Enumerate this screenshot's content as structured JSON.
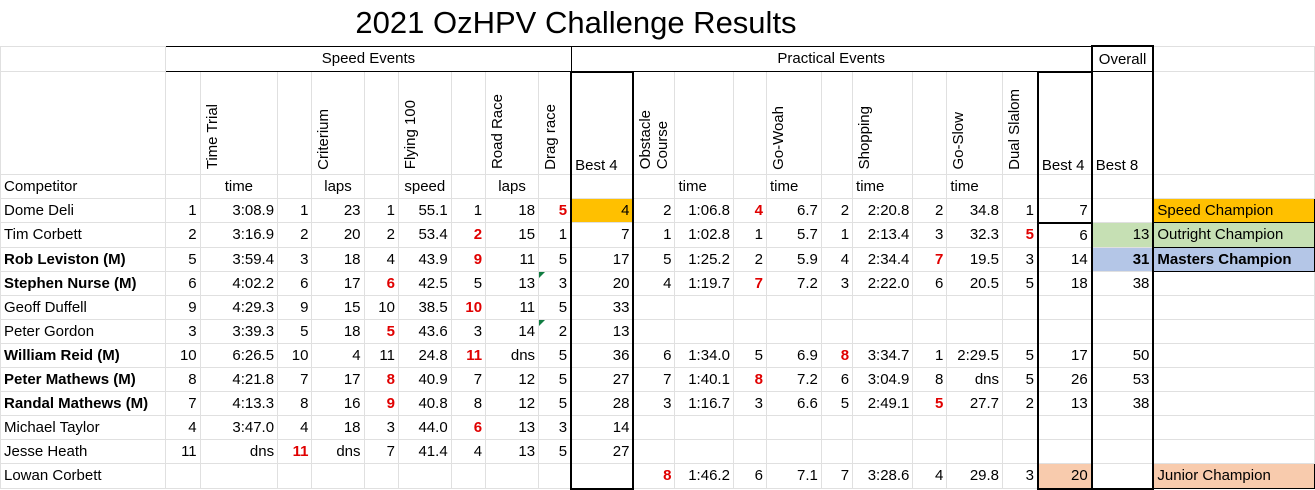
{
  "title": "2021 OzHPV Challenge Results",
  "groups": {
    "speed": "Speed Events",
    "practical": "Practical Events",
    "overall": "Overall"
  },
  "events": {
    "time_trial": "Time Trial",
    "criterium": "Criterium",
    "flying100": "Flying 100",
    "road_race": "Road Race",
    "drag_race": "Drag race",
    "best4": "Best 4",
    "obstacle_1": "Obstacle",
    "obstacle_2": "Course",
    "go_woah": "Go-Woah",
    "shopping": "Shopping",
    "go_slow": "Go-Slow",
    "dual_slalom": "Dual Slalom",
    "best4b": "Best 4",
    "best8": "Best 8"
  },
  "units": {
    "competitor": "Competitor",
    "time": "time",
    "laps": "laps",
    "speed": "speed",
    "laps2": "laps",
    "ob_time": "time",
    "gw_time": "time",
    "sh_time": "time",
    "gs_time": "time"
  },
  "rows": [
    {
      "name": "Dome Deli",
      "bold": false,
      "c": [
        "1",
        "3:08.9",
        "1",
        "23",
        "1",
        "55.1",
        "1",
        "18",
        "5",
        "4",
        "2",
        "1:06.8",
        "4",
        "6.7",
        "2",
        "2:20.8",
        "2",
        "34.8",
        "1",
        "7",
        ""
      ],
      "award": "Speed Champion"
    },
    {
      "name": "Tim Corbett",
      "bold": false,
      "c": [
        "2",
        "3:16.9",
        "2",
        "20",
        "2",
        "53.4",
        "2",
        "15",
        "1",
        "7",
        "1",
        "1:02.8",
        "1",
        "5.7",
        "1",
        "2:13.4",
        "3",
        "32.3",
        "5",
        "6",
        "13"
      ],
      "award": "Outright Champion"
    },
    {
      "name": "Rob Leviston (M)",
      "bold": true,
      "c": [
        "5",
        "3:59.4",
        "3",
        "18",
        "4",
        "43.9",
        "9",
        "11",
        "5",
        "17",
        "5",
        "1:25.2",
        "2",
        "5.9",
        "4",
        "2:34.4",
        "7",
        "19.5",
        "3",
        "14",
        "31"
      ],
      "award": "Masters Champion"
    },
    {
      "name": "Stephen Nurse (M)",
      "bold": true,
      "c": [
        "6",
        "4:02.2",
        "6",
        "17",
        "6",
        "42.5",
        "5",
        "13",
        "3",
        "20",
        "4",
        "1:19.7",
        "7",
        "7.2",
        "3",
        "2:22.0",
        "6",
        "20.5",
        "5",
        "18",
        "38"
      ],
      "award": ""
    },
    {
      "name": "Geoff Duffell",
      "bold": false,
      "c": [
        "9",
        "4:29.3",
        "9",
        "15",
        "10",
        "38.5",
        "10",
        "11",
        "5",
        "33",
        "",
        "",
        "",
        "",
        "",
        "",
        "",
        "",
        "",
        "",
        ""
      ],
      "award": ""
    },
    {
      "name": "Peter Gordon",
      "bold": false,
      "c": [
        "3",
        "3:39.3",
        "5",
        "18",
        "5",
        "43.6",
        "3",
        "14",
        "2",
        "13",
        "",
        "",
        "",
        "",
        "",
        "",
        "",
        "",
        "",
        "",
        ""
      ],
      "award": ""
    },
    {
      "name": "William Reid (M)",
      "bold": true,
      "c": [
        "10",
        "6:26.5",
        "10",
        "4",
        "11",
        "24.8",
        "11",
        "dns",
        "5",
        "36",
        "6",
        "1:34.0",
        "5",
        "6.9",
        "8",
        "3:34.7",
        "1",
        "2:29.5",
        "5",
        "17",
        "50"
      ],
      "award": ""
    },
    {
      "name": "Peter Mathews (M)",
      "bold": true,
      "c": [
        "8",
        "4:21.8",
        "7",
        "17",
        "8",
        "40.9",
        "7",
        "12",
        "5",
        "27",
        "7",
        "1:40.1",
        "8",
        "7.2",
        "6",
        "3:04.9",
        "8",
        "dns",
        "5",
        "26",
        "53"
      ],
      "award": ""
    },
    {
      "name": "Randal Mathews (M)",
      "bold": true,
      "c": [
        "7",
        "4:13.3",
        "8",
        "16",
        "9",
        "40.8",
        "8",
        "12",
        "5",
        "28",
        "3",
        "1:16.7",
        "3",
        "6.6",
        "5",
        "2:49.1",
        "5",
        "27.7",
        "2",
        "13",
        "38"
      ],
      "award": ""
    },
    {
      "name": "Michael Taylor",
      "bold": false,
      "c": [
        "4",
        "3:47.0",
        "4",
        "18",
        "3",
        "44.0",
        "6",
        "13",
        "3",
        "14",
        "",
        "",
        "",
        "",
        "",
        "",
        "",
        "",
        "",
        "",
        ""
      ],
      "award": ""
    },
    {
      "name": "Jesse Heath",
      "bold": false,
      "c": [
        "11",
        "dns",
        "11",
        "dns",
        "7",
        "41.4",
        "4",
        "13",
        "5",
        "27",
        "",
        "",
        "",
        "",
        "",
        "",
        "",
        "",
        "",
        "",
        ""
      ],
      "award": ""
    },
    {
      "name": "Lowan Corbett",
      "bold": false,
      "c": [
        "",
        "",
        "",
        "",
        "",
        "",
        "",
        "",
        "",
        "",
        "8",
        "1:46.2",
        "6",
        "7.1",
        "7",
        "3:28.6",
        "4",
        "29.8",
        "3",
        "20",
        ""
      ],
      "award": "Junior Champion"
    }
  ],
  "colors": {
    "speed_champion": "#ffc000",
    "outright_champion": "#c6e0b4",
    "masters_champion": "#b4c6e7",
    "junior_champion": "#f8cbad",
    "worst_score_red": "#e00000"
  }
}
